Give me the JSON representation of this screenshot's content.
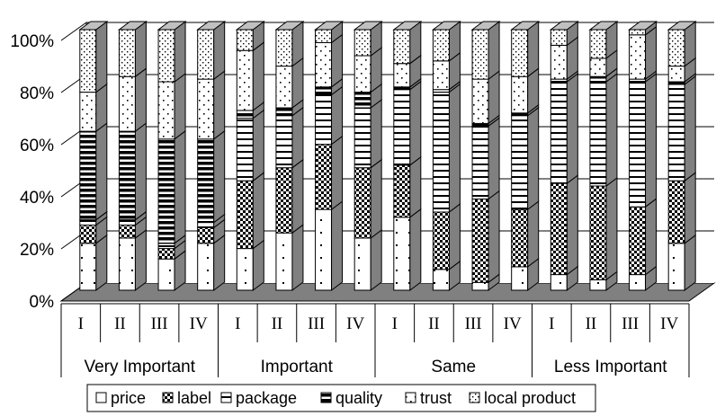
{
  "chart_data": {
    "type": "bar",
    "stacked": true,
    "percent_stacked": true,
    "style": "3d-column",
    "y_ticks": [
      "0%",
      "20%",
      "40%",
      "60%",
      "80%",
      "100%"
    ],
    "ylim": [
      0,
      100
    ],
    "groups": [
      {
        "label": "Very Important",
        "categories": [
          "I",
          "II",
          "III",
          "IV"
        ]
      },
      {
        "label": "Important",
        "categories": [
          "I",
          "II",
          "III",
          "IV"
        ]
      },
      {
        "label": "Same",
        "categories": [
          "I",
          "II",
          "III",
          "IV"
        ]
      },
      {
        "label": "Less Important",
        "categories": [
          "I",
          "II",
          "III",
          "IV"
        ]
      }
    ],
    "legend_position": "bottom",
    "series": [
      {
        "name": "price",
        "pattern": "price",
        "values": [
          18,
          20,
          12,
          18,
          16,
          22,
          31,
          20,
          28,
          8,
          3,
          9,
          6,
          4,
          6,
          18
        ]
      },
      {
        "name": "label",
        "pattern": "label",
        "values": [
          7,
          5,
          4,
          6,
          26,
          25,
          25,
          27,
          20,
          22,
          32,
          22,
          35,
          36,
          26,
          24
        ]
      },
      {
        "name": "package",
        "pattern": "package",
        "values": [
          2,
          2,
          2,
          2,
          24,
          20,
          19,
          23,
          29,
          46,
          28,
          36,
          39,
          40,
          48,
          37
        ]
      },
      {
        "name": "quality",
        "pattern": "quality",
        "values": [
          34,
          34,
          40,
          32,
          3,
          3,
          3,
          6,
          1,
          1,
          1,
          1,
          1,
          2,
          1,
          1
        ]
      },
      {
        "name": "trust",
        "pattern": "trust",
        "values": [
          15,
          21,
          22,
          23,
          23,
          16,
          17,
          14,
          9,
          11,
          17,
          14,
          13,
          7,
          17,
          6
        ]
      },
      {
        "name": "local product",
        "pattern": "local",
        "values": [
          24,
          18,
          20,
          19,
          8,
          14,
          5,
          10,
          13,
          12,
          19,
          18,
          6,
          11,
          2,
          14
        ]
      }
    ]
  },
  "colors": {
    "wall": "#ffffff",
    "floor": "#808080",
    "side": "#808080",
    "top": "#c0c0c0",
    "grid": "#000000"
  }
}
